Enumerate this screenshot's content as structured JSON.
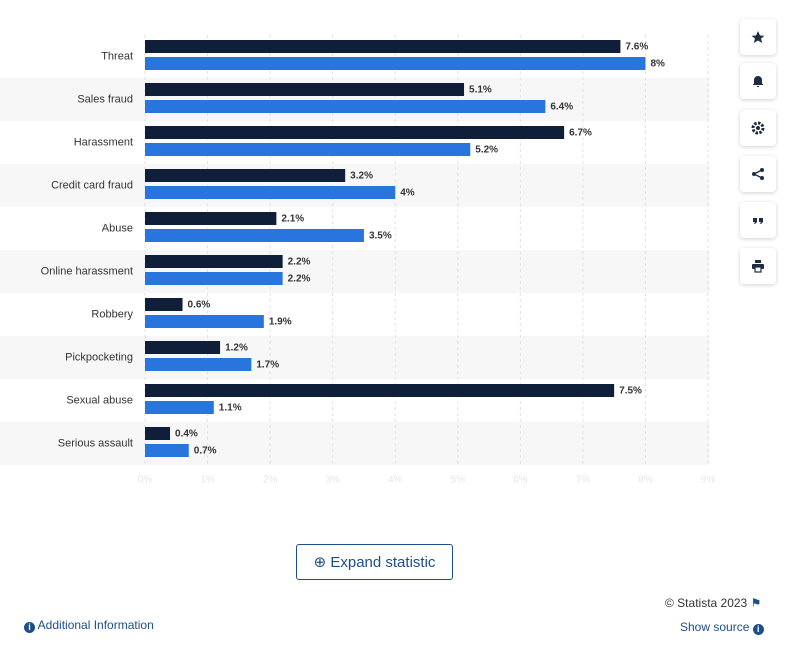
{
  "chart_data": {
    "type": "bar",
    "orientation": "horizontal",
    "categories": [
      "Threat",
      "Sales fraud",
      "Harassment",
      "Credit card fraud",
      "Abuse",
      "Online harassment",
      "Robbery",
      "Pickpocketing",
      "Sexual abuse",
      "Serious assault"
    ],
    "series": [
      {
        "color": "#0f1f3a",
        "values": [
          7.6,
          5.1,
          6.7,
          3.2,
          2.1,
          2.2,
          0.6,
          1.2,
          7.5,
          0.4
        ],
        "value_labels": [
          "7.6%",
          "5.1%",
          "6.7%",
          "3.2%",
          "2.1%",
          "2.2%",
          "0.6%",
          "1.2%",
          "7.5%",
          "0.4%"
        ]
      },
      {
        "color": "#2876dd",
        "values": [
          8,
          6.4,
          5.2,
          4,
          3.5,
          2.2,
          1.9,
          1.7,
          1.1,
          0.7
        ],
        "value_labels": [
          "8%",
          "6.4%",
          "5.2%",
          "4%",
          "3.5%",
          "2.2%",
          "1.9%",
          "1.7%",
          "1.1%",
          "0.7%"
        ]
      }
    ],
    "xlim": [
      0,
      9
    ],
    "xticks": [
      {
        "value": 0,
        "label": "0%"
      },
      {
        "value": 1,
        "label": "1%"
      },
      {
        "value": 2,
        "label": "2%"
      },
      {
        "value": 3,
        "label": "3%"
      },
      {
        "value": 4,
        "label": "4%"
      },
      {
        "value": 5,
        "label": "5%"
      },
      {
        "value": 6,
        "label": "6%"
      },
      {
        "value": 7,
        "label": "7%"
      },
      {
        "value": 8,
        "label": "8%"
      },
      {
        "value": 9,
        "label": "9%"
      }
    ],
    "grid": true
  },
  "ui": {
    "expand": "Expand statistic",
    "copyright": "© Statista 2023",
    "additional_info": "Additional Information",
    "show_source": "Show source"
  }
}
